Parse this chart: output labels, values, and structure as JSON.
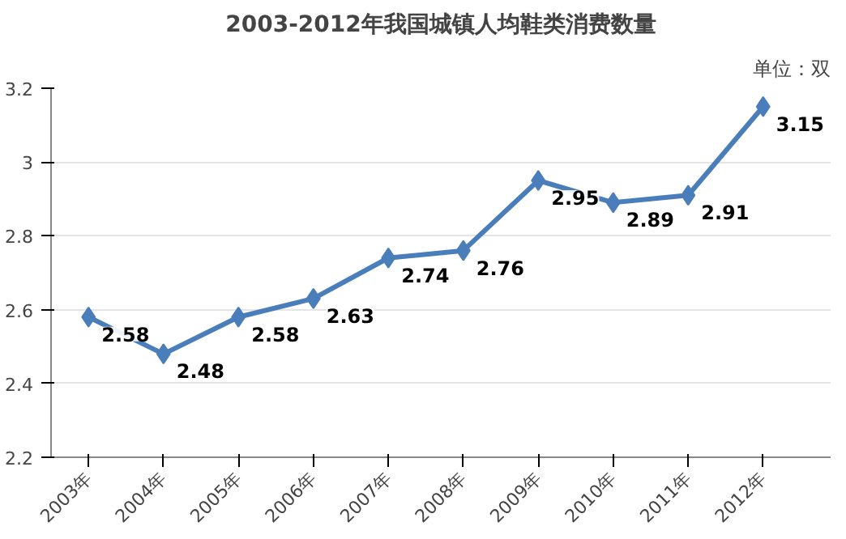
{
  "chart_data": {
    "type": "line",
    "title": "2003-2012年我国城镇人均鞋类消费数量",
    "annotations": [
      "单位：双"
    ],
    "categories": [
      "2003年",
      "2004年",
      "2005年",
      "2006年",
      "2007年",
      "2008年",
      "2009年",
      "2010年",
      "2011年",
      "2012年"
    ],
    "series": [
      {
        "color": "#4a7ebb",
        "values": [
          2.58,
          2.48,
          2.58,
          2.63,
          2.74,
          2.76,
          2.95,
          2.89,
          2.91,
          3.15
        ]
      }
    ],
    "ylim": [
      2.2,
      3.2
    ],
    "yticks": [
      2.2,
      2.4,
      2.6,
      2.8,
      3,
      3.2
    ],
    "grid": "y",
    "marker": "diamond",
    "line_style": "solid",
    "data_labels": true
  }
}
